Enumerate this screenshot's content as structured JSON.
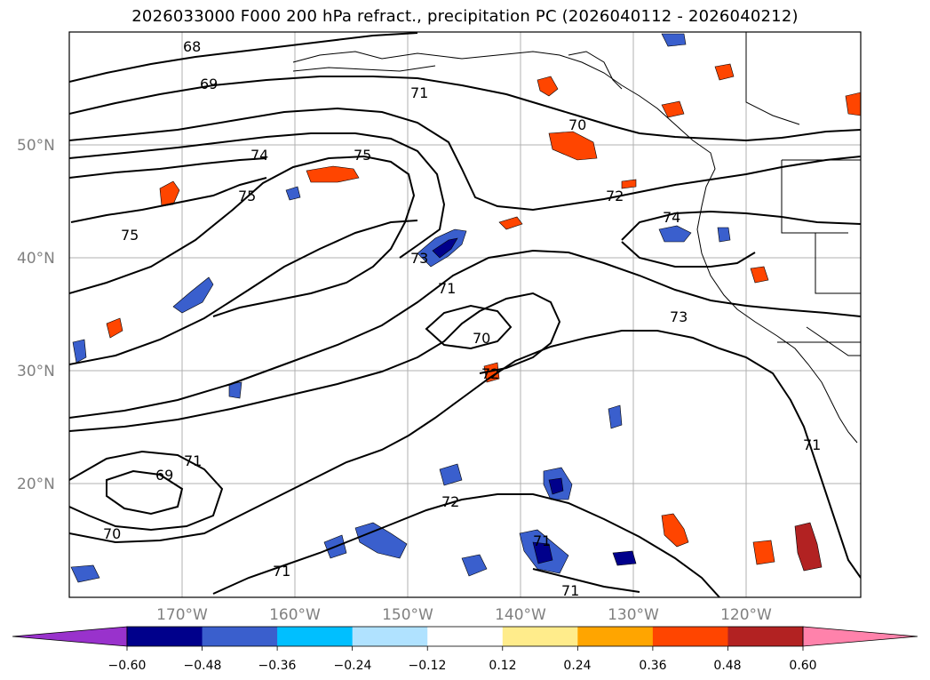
{
  "title": "2026033000 F000 200 hPa refract., precipitation PC (2026040112 - 2026040212)",
  "map": {
    "lat_labels": [
      "50°N",
      "40°N",
      "30°N",
      "20°N"
    ],
    "lon_labels": [
      "170°W",
      "160°W",
      "150°W",
      "140°W",
      "130°W",
      "120°W"
    ],
    "contour_labels": [
      "68",
      "69",
      "71",
      "70",
      "74",
      "75",
      "75",
      "75",
      "72",
      "74",
      "73",
      "71",
      "70",
      "72",
      "71",
      "69",
      "70",
      "71",
      "72",
      "71",
      "71",
      "71",
      "73"
    ]
  },
  "colorbar": {
    "ticks": [
      "−0.60",
      "−0.48",
      "−0.36",
      "−0.24",
      "−0.12",
      "0.12",
      "0.24",
      "0.36",
      "0.48",
      "0.60"
    ],
    "colors": [
      "#9932cc",
      "#00008b",
      "#3a5fcd",
      "#00bfff",
      "#b0e2ff",
      "#ffffff",
      "#ffec8b",
      "#ffa500",
      "#ff4500",
      "#b22222",
      "#ff82ab"
    ]
  },
  "colors": {
    "grid": "#b0b0b0",
    "contour": "#000000",
    "border": "#000000"
  }
}
